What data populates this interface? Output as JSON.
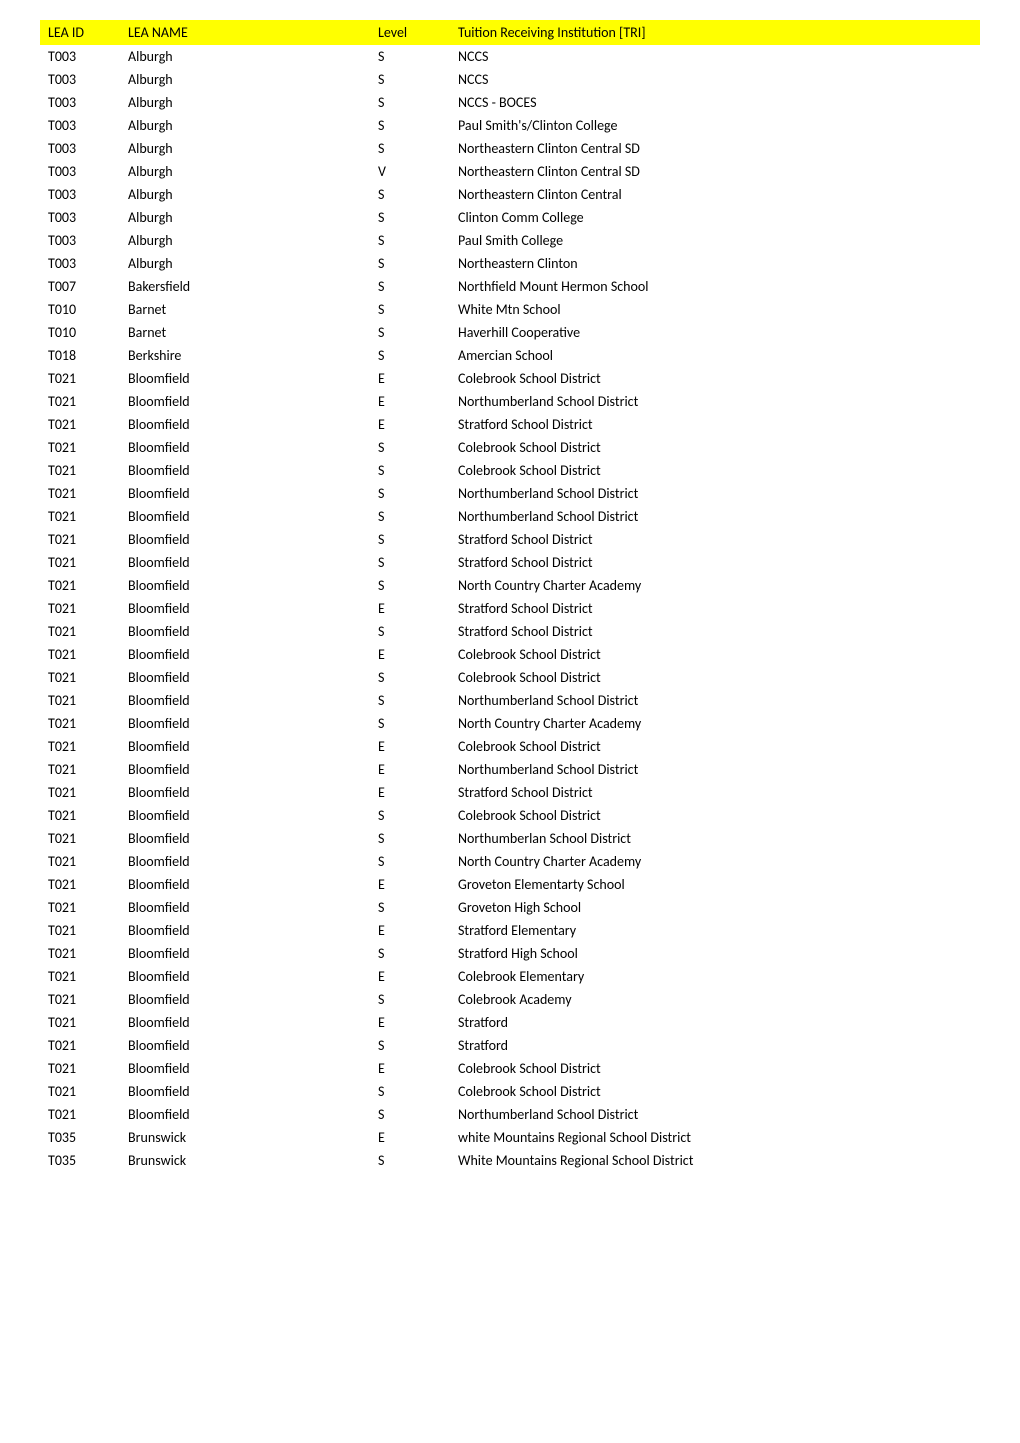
{
  "table": {
    "header_bg_color": "#ffff00",
    "text_color": "#000000",
    "background_color": "#ffffff",
    "font_family": "Calibri, Arial, sans-serif",
    "font_size": 14,
    "columns": [
      {
        "key": "lea_id",
        "label": "LEA ID"
      },
      {
        "key": "lea_name",
        "label": "LEA NAME"
      },
      {
        "key": "level",
        "label": "Level"
      },
      {
        "key": "tri",
        "label": "Tuition Receiving Institution [TRI]"
      }
    ],
    "rows": [
      {
        "lea_id": "T003",
        "lea_name": "Alburgh",
        "level": "S",
        "tri": "NCCS"
      },
      {
        "lea_id": "T003",
        "lea_name": "Alburgh",
        "level": "S",
        "tri": "NCCS"
      },
      {
        "lea_id": "T003",
        "lea_name": "Alburgh",
        "level": "S",
        "tri": "NCCS - BOCES"
      },
      {
        "lea_id": "T003",
        "lea_name": "Alburgh",
        "level": "S",
        "tri": "Paul Smith's/Clinton College"
      },
      {
        "lea_id": "T003",
        "lea_name": "Alburgh",
        "level": "S",
        "tri": "Northeastern Clinton Central SD"
      },
      {
        "lea_id": "T003",
        "lea_name": "Alburgh",
        "level": "V",
        "tri": "Northeastern Clinton Central SD"
      },
      {
        "lea_id": "T003",
        "lea_name": "Alburgh",
        "level": "S",
        "tri": "Northeastern Clinton Central"
      },
      {
        "lea_id": "T003",
        "lea_name": "Alburgh",
        "level": "S",
        "tri": "Clinton Comm College"
      },
      {
        "lea_id": "T003",
        "lea_name": "Alburgh",
        "level": "S",
        "tri": "Paul Smith College"
      },
      {
        "lea_id": "T003",
        "lea_name": "Alburgh",
        "level": "S",
        "tri": "Northeastern Clinton"
      },
      {
        "lea_id": "T007",
        "lea_name": "Bakersfield",
        "level": "S",
        "tri": "Northfield Mount Hermon School"
      },
      {
        "lea_id": "T010",
        "lea_name": "Barnet",
        "level": "S",
        "tri": "White Mtn School"
      },
      {
        "lea_id": "T010",
        "lea_name": "Barnet",
        "level": "S",
        "tri": "Haverhill Cooperative"
      },
      {
        "lea_id": "T018",
        "lea_name": "Berkshire",
        "level": "S",
        "tri": "Amercian School"
      },
      {
        "lea_id": "T021",
        "lea_name": "Bloomfield",
        "level": "E",
        "tri": "Colebrook School District"
      },
      {
        "lea_id": "T021",
        "lea_name": "Bloomfield",
        "level": "E",
        "tri": "Northumberland School District"
      },
      {
        "lea_id": "T021",
        "lea_name": "Bloomfield",
        "level": "E",
        "tri": "Stratford School District"
      },
      {
        "lea_id": "T021",
        "lea_name": "Bloomfield",
        "level": "S",
        "tri": "Colebrook School District"
      },
      {
        "lea_id": "T021",
        "lea_name": "Bloomfield",
        "level": "S",
        "tri": "Colebrook School District"
      },
      {
        "lea_id": "T021",
        "lea_name": "Bloomfield",
        "level": "S",
        "tri": "Northumberland School District"
      },
      {
        "lea_id": "T021",
        "lea_name": "Bloomfield",
        "level": "S",
        "tri": "Northumberland School District"
      },
      {
        "lea_id": "T021",
        "lea_name": "Bloomfield",
        "level": "S",
        "tri": "Stratford School District"
      },
      {
        "lea_id": "T021",
        "lea_name": "Bloomfield",
        "level": "S",
        "tri": "Stratford School District"
      },
      {
        "lea_id": "T021",
        "lea_name": "Bloomfield",
        "level": "S",
        "tri": "North Country Charter Academy"
      },
      {
        "lea_id": "T021",
        "lea_name": "Bloomfield",
        "level": "E",
        "tri": "Stratford School District"
      },
      {
        "lea_id": "T021",
        "lea_name": "Bloomfield",
        "level": "S",
        "tri": "Stratford School District"
      },
      {
        "lea_id": "T021",
        "lea_name": "Bloomfield",
        "level": "E",
        "tri": "Colebrook School District"
      },
      {
        "lea_id": "T021",
        "lea_name": "Bloomfield",
        "level": "S",
        "tri": "Colebrook School District"
      },
      {
        "lea_id": "T021",
        "lea_name": "Bloomfield",
        "level": "S",
        "tri": "Northumberland School District"
      },
      {
        "lea_id": "T021",
        "lea_name": "Bloomfield",
        "level": "S",
        "tri": "North Country Charter Academy"
      },
      {
        "lea_id": "T021",
        "lea_name": "Bloomfield",
        "level": "E",
        "tri": "Colebrook School District"
      },
      {
        "lea_id": "T021",
        "lea_name": "Bloomfield",
        "level": "E",
        "tri": "Northumberland School District"
      },
      {
        "lea_id": "T021",
        "lea_name": "Bloomfield",
        "level": "E",
        "tri": "Stratford School District"
      },
      {
        "lea_id": "T021",
        "lea_name": "Bloomfield",
        "level": "S",
        "tri": "Colebrook School District"
      },
      {
        "lea_id": "T021",
        "lea_name": "Bloomfield",
        "level": "S",
        "tri": "Northumberlan School District"
      },
      {
        "lea_id": "T021",
        "lea_name": "Bloomfield",
        "level": "S",
        "tri": "North Country Charter Academy"
      },
      {
        "lea_id": "T021",
        "lea_name": "Bloomfield",
        "level": "E",
        "tri": "Groveton Elementarty School"
      },
      {
        "lea_id": "T021",
        "lea_name": "Bloomfield",
        "level": "S",
        "tri": "Groveton High School"
      },
      {
        "lea_id": "T021",
        "lea_name": "Bloomfield",
        "level": "E",
        "tri": "Stratford Elementary"
      },
      {
        "lea_id": "T021",
        "lea_name": "Bloomfield",
        "level": "S",
        "tri": "Stratford High School"
      },
      {
        "lea_id": "T021",
        "lea_name": "Bloomfield",
        "level": "E",
        "tri": "Colebrook Elementary"
      },
      {
        "lea_id": "T021",
        "lea_name": "Bloomfield",
        "level": "S",
        "tri": "Colebrook Academy"
      },
      {
        "lea_id": "T021",
        "lea_name": "Bloomfield",
        "level": "E",
        "tri": "Stratford"
      },
      {
        "lea_id": "T021",
        "lea_name": "Bloomfield",
        "level": "S",
        "tri": "Stratford"
      },
      {
        "lea_id": "T021",
        "lea_name": "Bloomfield",
        "level": "E",
        "tri": "Colebrook School District"
      },
      {
        "lea_id": "T021",
        "lea_name": "Bloomfield",
        "level": "S",
        "tri": "Colebrook School District"
      },
      {
        "lea_id": "T021",
        "lea_name": "Bloomfield",
        "level": "S",
        "tri": "Northumberland School District"
      },
      {
        "lea_id": "T035",
        "lea_name": "Brunswick",
        "level": "E",
        "tri": "white Mountains Regional School District"
      },
      {
        "lea_id": "T035",
        "lea_name": "Brunswick",
        "level": "S",
        "tri": "White Mountains Regional School District"
      }
    ]
  }
}
